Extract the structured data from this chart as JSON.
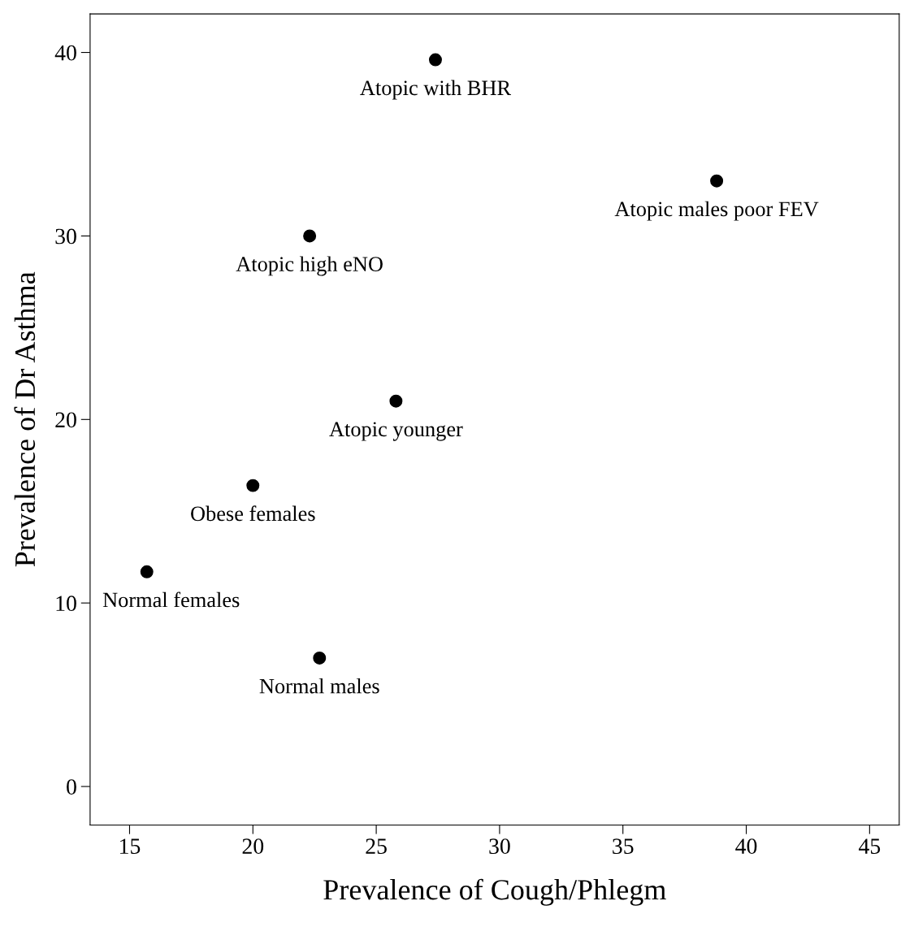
{
  "chart_data": {
    "type": "scatter",
    "xlabel": "Prevalence of Cough/Phlegm",
    "ylabel": "Prevalence of Dr Asthma",
    "x": [
      27.4,
      38.8,
      22.3,
      25.8,
      20.0,
      15.7,
      22.7
    ],
    "series": [
      {
        "color": "#000000",
        "values": [
          39.6,
          33.0,
          30.0,
          21.0,
          16.4,
          11.7,
          7.0
        ]
      }
    ],
    "annotations": [
      {
        "text": "Atopic with BHR",
        "x": 27.4,
        "y": 39.6
      },
      {
        "text": "Atopic males poor FEV",
        "x": 38.8,
        "y": 33.0
      },
      {
        "text": "Atopic high eNO",
        "x": 22.3,
        "y": 30.0
      },
      {
        "text": "Atopic younger",
        "x": 25.8,
        "y": 21.0
      },
      {
        "text": "Obese females",
        "x": 20.0,
        "y": 16.4
      },
      {
        "text": "Normal females",
        "x": 15.7,
        "y": 11.7
      },
      {
        "text": "Normal males",
        "x": 22.7,
        "y": 7.0
      }
    ],
    "xlim": [
      13.4,
      46.2
    ],
    "ylim": [
      -2.1,
      42.1
    ],
    "xticks": [
      15,
      20,
      25,
      30,
      35,
      40,
      45
    ],
    "yticks": [
      0,
      10,
      20,
      30,
      40
    ],
    "grid": false,
    "marker": "circle",
    "legend": false
  }
}
